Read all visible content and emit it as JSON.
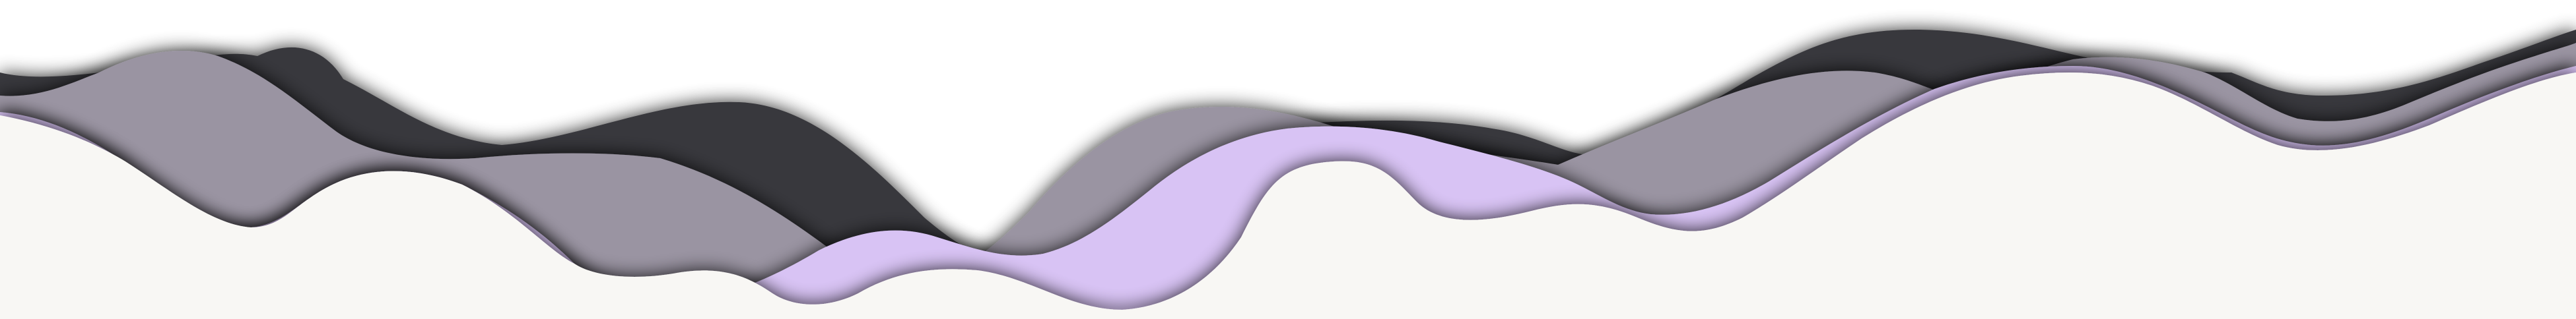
{
  "scene": {
    "description_label": "",
    "colors": {
      "background": "#ffffff",
      "layer_dark": "#38373c",
      "layer_gray": "#9a94a2",
      "layer_lilac": "#d8c3f4",
      "layer_cream": "#f8f7f4",
      "shadow": "#000000"
    }
  }
}
